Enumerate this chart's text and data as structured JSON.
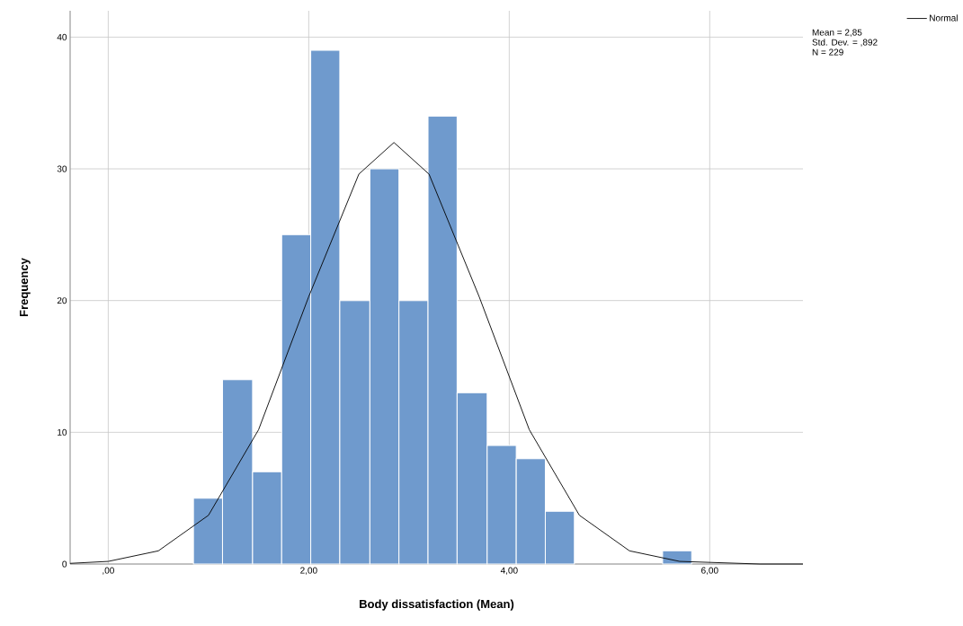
{
  "chart_data": {
    "type": "histogram",
    "xlabel": "Body dissatisfaction (Mean)",
    "ylabel": "Frequency",
    "bins": [
      0.85,
      1.14,
      1.44,
      1.73,
      2.02,
      2.31,
      2.61,
      2.9,
      3.19,
      3.48,
      3.78,
      4.07,
      4.36,
      4.65,
      5.53,
      5.82
    ],
    "values": [
      5,
      14,
      7,
      25,
      39,
      20,
      30,
      20,
      34,
      13,
      9,
      8,
      4,
      0,
      1
    ],
    "color": "#6f9acd",
    "series": [
      {
        "name": "Normal",
        "type": "line",
        "color": "#000000",
        "x": [
          -0.38,
          0,
          0.5,
          1.0,
          1.5,
          2.0,
          2.5,
          2.85,
          3.2,
          3.7,
          4.2,
          4.7,
          5.2,
          5.7,
          6.5,
          6.93
        ],
        "values": [
          0.05,
          0.2,
          1.0,
          3.7,
          10.2,
          20.3,
          29.6,
          32,
          29.6,
          20.3,
          10.2,
          3.7,
          1.0,
          0.2,
          0,
          0
        ]
      }
    ],
    "xlim": [
      -0.38,
      6.93
    ],
    "ylim": [
      0,
      42
    ],
    "xticks": [
      {
        "value": 0,
        "label": ",00"
      },
      {
        "value": 2,
        "label": "2,00"
      },
      {
        "value": 4,
        "label": "4,00"
      },
      {
        "value": 6,
        "label": "6,00"
      }
    ],
    "yticks": [
      0,
      10,
      20,
      30,
      40
    ],
    "grid": true,
    "legend": "top right",
    "annotations": [
      "Mean = 2,85",
      "Std. Dev. = ,892",
      "N = 229"
    ]
  }
}
